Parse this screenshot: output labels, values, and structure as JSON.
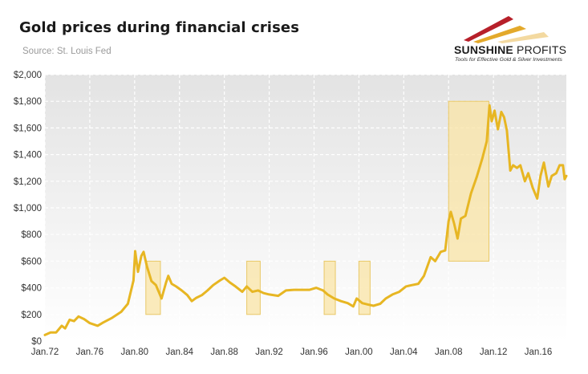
{
  "header": {
    "title": "Gold prices during financial crises",
    "subtitle": "Source: St. Louis Fed"
  },
  "logo": {
    "name_bold": "SUNSHINE",
    "name_thin": " PROFITS",
    "tagline": "Tools for Effective Gold & Silver Investments"
  },
  "colors": {
    "line": "#e7b623",
    "crisis_fill": "#f9e4a6",
    "crisis_stroke": "#e9c867",
    "plot_bg_top": "#e3e3e3",
    "plot_bg_bottom": "#ffffff",
    "grid": "#ffffff",
    "logo_red": "#b7202a",
    "logo_gold": "#e3a92b"
  },
  "chart_data": {
    "type": "line",
    "title": "Gold prices during financial crises",
    "xlabel": "",
    "ylabel": "",
    "xlim": [
      1972,
      2018.5
    ],
    "ylim": [
      0,
      2000
    ],
    "grid": true,
    "y_ticks": [
      {
        "value": 0,
        "label": "$0"
      },
      {
        "value": 200,
        "label": "$200"
      },
      {
        "value": 400,
        "label": "$400"
      },
      {
        "value": 600,
        "label": "$600"
      },
      {
        "value": 800,
        "label": "$800"
      },
      {
        "value": 1000,
        "label": "$1,000"
      },
      {
        "value": 1200,
        "label": "$1,200"
      },
      {
        "value": 1400,
        "label": "$1,400"
      },
      {
        "value": 1600,
        "label": "$1,600"
      },
      {
        "value": 1800,
        "label": "$1,800"
      },
      {
        "value": 2000,
        "label": "$2,000"
      }
    ],
    "x_ticks": [
      {
        "value": 1972,
        "label": "Jan.72"
      },
      {
        "value": 1976,
        "label": "Jan.76"
      },
      {
        "value": 1980,
        "label": "Jan.80"
      },
      {
        "value": 1984,
        "label": "Jan.84"
      },
      {
        "value": 1988,
        "label": "Jan.88"
      },
      {
        "value": 1992,
        "label": "Jan.92"
      },
      {
        "value": 1996,
        "label": "Jan.96"
      },
      {
        "value": 2000,
        "label": "Jan.00"
      },
      {
        "value": 2004,
        "label": "Jan.04"
      },
      {
        "value": 2008,
        "label": "Jan.08"
      },
      {
        "value": 2012,
        "label": "Jan.12"
      },
      {
        "value": 2016,
        "label": "Jan.16"
      }
    ],
    "crisis_periods": [
      {
        "x0": 1981.0,
        "x1": 1982.3,
        "y0": 200,
        "y1": 600
      },
      {
        "x0": 1990.0,
        "x1": 1991.2,
        "y0": 200,
        "y1": 600
      },
      {
        "x0": 1996.9,
        "x1": 1997.9,
        "y0": 200,
        "y1": 600
      },
      {
        "x0": 2000.0,
        "x1": 2001.0,
        "y0": 200,
        "y1": 600
      },
      {
        "x0": 2008.0,
        "x1": 2011.6,
        "y0": 600,
        "y1": 1800
      }
    ],
    "series": [
      {
        "values": [
          [
            1972.0,
            46
          ],
          [
            1972.5,
            65
          ],
          [
            1973.0,
            65
          ],
          [
            1973.5,
            115
          ],
          [
            1973.8,
            95
          ],
          [
            1974.2,
            160
          ],
          [
            1974.6,
            150
          ],
          [
            1975.0,
            185
          ],
          [
            1975.5,
            165
          ],
          [
            1976.0,
            135
          ],
          [
            1976.7,
            115
          ],
          [
            1977.2,
            140
          ],
          [
            1978.0,
            175
          ],
          [
            1978.8,
            220
          ],
          [
            1979.4,
            280
          ],
          [
            1979.9,
            455
          ],
          [
            1980.05,
            675
          ],
          [
            1980.3,
            520
          ],
          [
            1980.6,
            640
          ],
          [
            1980.8,
            670
          ],
          [
            1981.1,
            560
          ],
          [
            1981.5,
            450
          ],
          [
            1981.9,
            420
          ],
          [
            1982.4,
            320
          ],
          [
            1982.8,
            440
          ],
          [
            1983.0,
            490
          ],
          [
            1983.3,
            430
          ],
          [
            1983.7,
            410
          ],
          [
            1984.2,
            380
          ],
          [
            1984.7,
            345
          ],
          [
            1985.1,
            300
          ],
          [
            1985.5,
            325
          ],
          [
            1986.0,
            345
          ],
          [
            1986.5,
            380
          ],
          [
            1987.0,
            420
          ],
          [
            1987.6,
            455
          ],
          [
            1988.0,
            475
          ],
          [
            1988.5,
            440
          ],
          [
            1989.0,
            410
          ],
          [
            1989.6,
            370
          ],
          [
            1990.0,
            410
          ],
          [
            1990.5,
            370
          ],
          [
            1991.0,
            380
          ],
          [
            1991.5,
            360
          ],
          [
            1992.0,
            350
          ],
          [
            1992.8,
            340
          ],
          [
            1993.5,
            380
          ],
          [
            1994.2,
            385
          ],
          [
            1995.0,
            385
          ],
          [
            1995.6,
            385
          ],
          [
            1996.2,
            400
          ],
          [
            1996.8,
            380
          ],
          [
            1997.2,
            350
          ],
          [
            1997.8,
            320
          ],
          [
            1998.4,
            300
          ],
          [
            1999.0,
            285
          ],
          [
            1999.5,
            260
          ],
          [
            1999.8,
            320
          ],
          [
            2000.3,
            285
          ],
          [
            2000.8,
            275
          ],
          [
            2001.3,
            265
          ],
          [
            2001.9,
            280
          ],
          [
            2002.4,
            320
          ],
          [
            2003.0,
            350
          ],
          [
            2003.6,
            370
          ],
          [
            2004.2,
            410
          ],
          [
            2004.7,
            420
          ],
          [
            2005.3,
            430
          ],
          [
            2005.8,
            490
          ],
          [
            2006.4,
            630
          ],
          [
            2006.8,
            600
          ],
          [
            2007.3,
            670
          ],
          [
            2007.7,
            680
          ],
          [
            2008.0,
            900
          ],
          [
            2008.2,
            970
          ],
          [
            2008.5,
            880
          ],
          [
            2008.8,
            770
          ],
          [
            2009.1,
            920
          ],
          [
            2009.5,
            940
          ],
          [
            2010.0,
            1110
          ],
          [
            2010.5,
            1230
          ],
          [
            2011.0,
            1370
          ],
          [
            2011.4,
            1500
          ],
          [
            2011.65,
            1770
          ],
          [
            2011.85,
            1650
          ],
          [
            2012.1,
            1730
          ],
          [
            2012.4,
            1590
          ],
          [
            2012.7,
            1720
          ],
          [
            2012.95,
            1680
          ],
          [
            2013.2,
            1580
          ],
          [
            2013.5,
            1280
          ],
          [
            2013.75,
            1320
          ],
          [
            2014.1,
            1300
          ],
          [
            2014.4,
            1320
          ],
          [
            2014.8,
            1200
          ],
          [
            2015.1,
            1260
          ],
          [
            2015.5,
            1150
          ],
          [
            2015.9,
            1070
          ],
          [
            2016.2,
            1240
          ],
          [
            2016.5,
            1340
          ],
          [
            2016.9,
            1160
          ],
          [
            2017.2,
            1240
          ],
          [
            2017.6,
            1260
          ],
          [
            2017.9,
            1320
          ],
          [
            2018.2,
            1320
          ],
          [
            2018.35,
            1215
          ],
          [
            2018.5,
            1240
          ]
        ]
      }
    ]
  }
}
